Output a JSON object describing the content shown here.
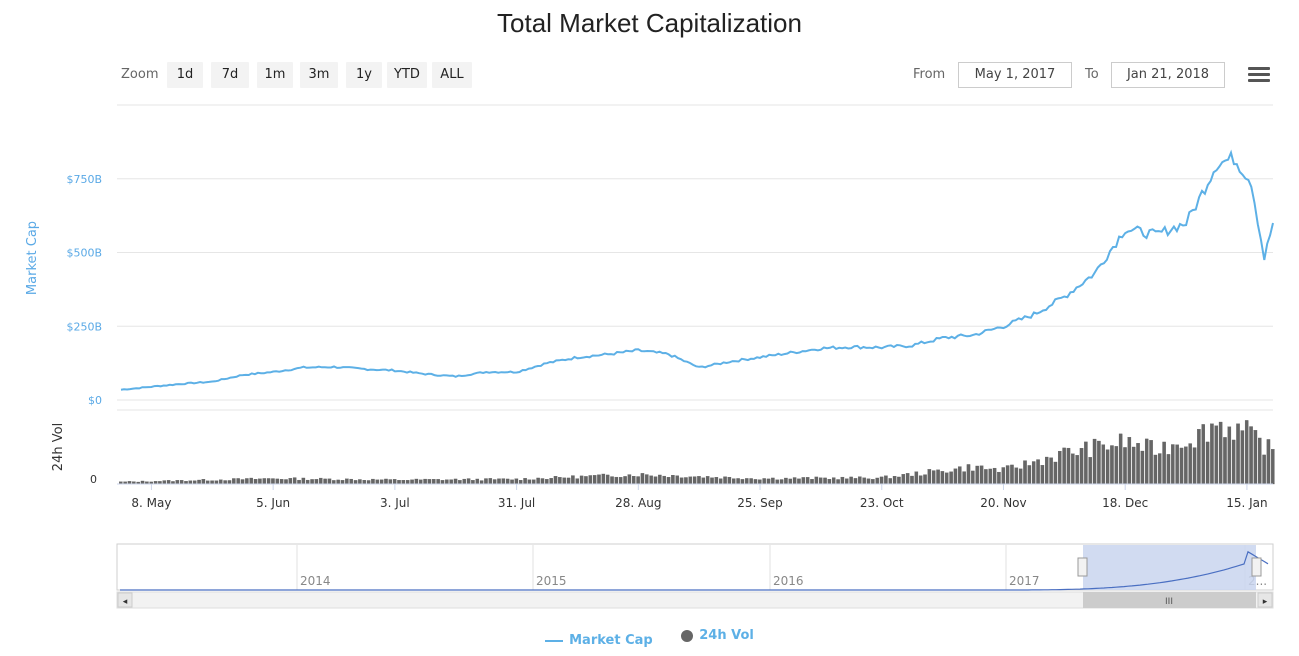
{
  "title": "Total Market Capitalization",
  "zoom": {
    "label": "Zoom",
    "buttons": [
      "1d",
      "7d",
      "1m",
      "3m",
      "1y",
      "YTD",
      "ALL"
    ]
  },
  "range": {
    "from_label": "From",
    "from_value": "May 1, 2017",
    "to_label": "To",
    "to_value": "Jan 21, 2018"
  },
  "legend": {
    "market_cap": "Market Cap",
    "vol": "24h Vol"
  },
  "colors": {
    "market_cap": "#5db0e6",
    "volume": "#666666",
    "navigator_fill": "#c9d5ee",
    "navigator_line": "#4a6fc2"
  },
  "chart_data": {
    "type": "line",
    "title": "Total Market Capitalization",
    "x_range": [
      "May 1, 2017",
      "Jan 21, 2018"
    ],
    "x_ticks": [
      "8. May",
      "5. Jun",
      "3. Jul",
      "31. Jul",
      "28. Aug",
      "25. Sep",
      "23. Oct",
      "20. Nov",
      "18. Dec",
      "15. Jan"
    ],
    "market_cap_axis": {
      "label": "Market Cap",
      "ticks": [
        "$0",
        "$250B",
        "$500B",
        "$750B"
      ],
      "ylim": [
        0,
        1000
      ]
    },
    "volume_axis": {
      "label": "24h Vol",
      "ticks": [
        "0"
      ]
    },
    "series": [
      {
        "name": "Market Cap",
        "unit": "B USD",
        "x": [
          "May 1, 2017",
          "May 8, 2017",
          "May 15, 2017",
          "May 22, 2017",
          "May 29, 2017",
          "Jun 5, 2017",
          "Jun 12, 2017",
          "Jun 19, 2017",
          "Jun 26, 2017",
          "Jul 3, 2017",
          "Jul 10, 2017",
          "Jul 17, 2017",
          "Jul 24, 2017",
          "Jul 31, 2017",
          "Aug 7, 2017",
          "Aug 14, 2017",
          "Aug 21, 2017",
          "Aug 28, 2017",
          "Sep 4, 2017",
          "Sep 11, 2017",
          "Sep 18, 2017",
          "Sep 25, 2017",
          "Oct 2, 2017",
          "Oct 9, 2017",
          "Oct 16, 2017",
          "Oct 23, 2017",
          "Oct 30, 2017",
          "Nov 6, 2017",
          "Nov 13, 2017",
          "Nov 20, 2017",
          "Nov 27, 2017",
          "Dec 4, 2017",
          "Dec 11, 2017",
          "Dec 18, 2017",
          "Dec 25, 2017",
          "Jan 1, 2018",
          "Jan 4, 2018",
          "Jan 8, 2018",
          "Jan 12, 2018",
          "Jan 16, 2018",
          "Jan 19, 2018",
          "Jan 21, 2018"
        ],
        "values": [
          35,
          45,
          55,
          62,
          85,
          95,
          110,
          112,
          105,
          100,
          88,
          80,
          95,
          95,
          125,
          145,
          155,
          168,
          155,
          110,
          130,
          145,
          160,
          175,
          180,
          178,
          185,
          210,
          220,
          250,
          290,
          350,
          430,
          580,
          560,
          600,
          680,
          800,
          820,
          740,
          480,
          600
        ]
      },
      {
        "name": "24h Vol",
        "x": [
          "May 1, 2017",
          "Jun 5, 2017",
          "Jul 3, 2017",
          "Jul 31, 2017",
          "Aug 28, 2017",
          "Sep 25, 2017",
          "Oct 23, 2017",
          "Nov 13, 2017",
          "Nov 20, 2017",
          "Dec 4, 2017",
          "Dec 18, 2017",
          "Dec 25, 2017",
          "Jan 4, 2018",
          "Jan 8, 2018",
          "Jan 15, 2018",
          "Jan 21, 2018"
        ],
        "values_relative": [
          0.03,
          0.08,
          0.06,
          0.07,
          0.14,
          0.08,
          0.09,
          0.25,
          0.2,
          0.45,
          0.62,
          0.5,
          0.72,
          0.9,
          0.75,
          0.48
        ]
      }
    ],
    "navigator": {
      "years": [
        "2014",
        "2015",
        "2016",
        "2017",
        "2..."
      ]
    },
    "legend_position": "bottom-center",
    "grid": true
  }
}
